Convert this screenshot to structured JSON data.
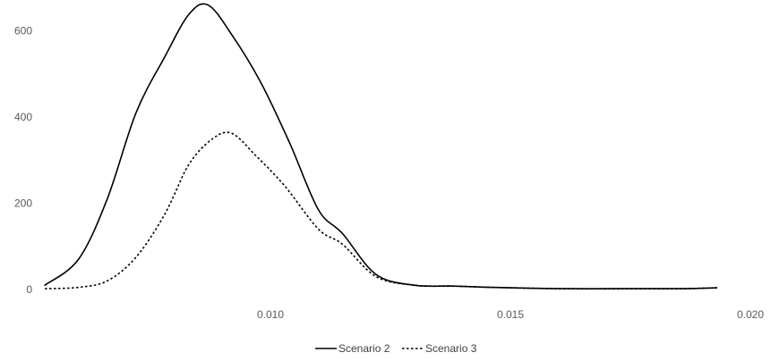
{
  "chart_data": {
    "type": "line",
    "title": "",
    "xlabel": "",
    "ylabel": "",
    "xlim": [
      0.005,
      0.02
    ],
    "ylim": [
      0,
      700
    ],
    "x_ticks": [
      {
        "value": 0.01,
        "label": "0.010"
      },
      {
        "value": 0.015,
        "label": "0.015"
      },
      {
        "value": 0.02,
        "label": "0.020"
      }
    ],
    "y_ticks": [
      {
        "value": 0,
        "label": "0"
      },
      {
        "value": 200,
        "label": "200"
      },
      {
        "value": 400,
        "label": "400"
      },
      {
        "value": 600,
        "label": "600"
      }
    ],
    "grid": false,
    "legend_position": "bottom",
    "series": [
      {
        "name": "Scenario 2",
        "style": "solid",
        "color": "#000000",
        "x": [
          0.0053,
          0.006,
          0.0066,
          0.0072,
          0.0078,
          0.0083,
          0.0087,
          0.0092,
          0.0098,
          0.0104,
          0.011,
          0.0115,
          0.0122,
          0.013,
          0.0138,
          0.0146,
          0.016,
          0.0175,
          0.0186,
          0.0193
        ],
        "y": [
          10,
          70,
          210,
          410,
          540,
          638,
          660,
          590,
          480,
          340,
          185,
          130,
          35,
          10,
          8,
          5,
          2,
          2,
          2,
          4
        ]
      },
      {
        "name": "Scenario 3",
        "style": "dotted",
        "color": "#000000",
        "x": [
          0.0053,
          0.006,
          0.0066,
          0.0072,
          0.0078,
          0.0083,
          0.0088,
          0.0092,
          0.0097,
          0.0103,
          0.011,
          0.0115,
          0.0122,
          0.013,
          0.0138,
          0.0146,
          0.016,
          0.0175,
          0.0186,
          0.0193
        ],
        "y": [
          2,
          5,
          20,
          75,
          175,
          290,
          350,
          362,
          310,
          240,
          140,
          105,
          30,
          10,
          8,
          5,
          2,
          2,
          2,
          4
        ]
      }
    ]
  }
}
